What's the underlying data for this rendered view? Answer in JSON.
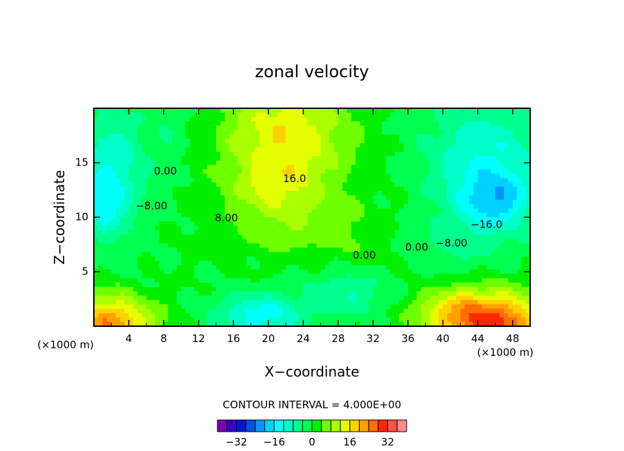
{
  "chart_data": {
    "type": "heatmap",
    "title": "zonal velocity",
    "xlabel": "X−coordinate",
    "ylabel": "Z−coordinate",
    "x_unit_left": "(×1000 m)",
    "x_unit_right": "(×1000 m)",
    "xlim": [
      0,
      50
    ],
    "ylim": [
      0,
      20
    ],
    "x_ticks": [
      "4",
      "8",
      "12",
      "16",
      "20",
      "24",
      "28",
      "32",
      "36",
      "40",
      "44",
      "48"
    ],
    "y_ticks": [
      "5",
      "10",
      "15"
    ],
    "contour_interval_text": "CONTOUR INTERVAL = 4.000E+00",
    "contour_labels": [
      {
        "text": "16.0",
        "x": 23.0,
        "y": 13.5
      },
      {
        "text": "8.00",
        "x": 15.2,
        "y": 9.9
      },
      {
        "text": "−16.0",
        "x": 45.0,
        "y": 9.3
      },
      {
        "text": "−8.00",
        "x": 41.0,
        "y": 7.6
      },
      {
        "text": "−8.00",
        "x": 6.6,
        "y": 11.0
      },
      {
        "text": "0.00",
        "x": 8.2,
        "y": 14.2
      },
      {
        "text": "0.00",
        "x": 31.0,
        "y": 6.5
      },
      {
        "text": "0.00",
        "x": 37.0,
        "y": 7.2
      }
    ],
    "colorbar": {
      "levels": [
        -40,
        -36,
        -32,
        -28,
        -24,
        -20,
        -16,
        -12,
        -8,
        -4,
        0,
        4,
        8,
        12,
        16,
        20,
        24,
        28,
        32,
        36,
        40
      ],
      "colors": [
        "#7a00b4",
        "#3a00c8",
        "#0014d2",
        "#0050e6",
        "#0096ff",
        "#00d2ff",
        "#00ffff",
        "#00ffc8",
        "#00ff8c",
        "#00ff50",
        "#00f000",
        "#6eff00",
        "#aaff00",
        "#e6ff00",
        "#ffd200",
        "#ffa000",
        "#ff6e00",
        "#ff2800",
        "#ff5050",
        "#ff8c8c"
      ],
      "tick_labels": [
        {
          "text": "−32",
          "value": -32
        },
        {
          "text": "−16",
          "value": -16
        },
        {
          "text": "0",
          "value": 0
        },
        {
          "text": "16",
          "value": 16
        },
        {
          "text": "32",
          "value": 32
        }
      ]
    },
    "grid": false,
    "legend": "colorbar bottom-center"
  }
}
